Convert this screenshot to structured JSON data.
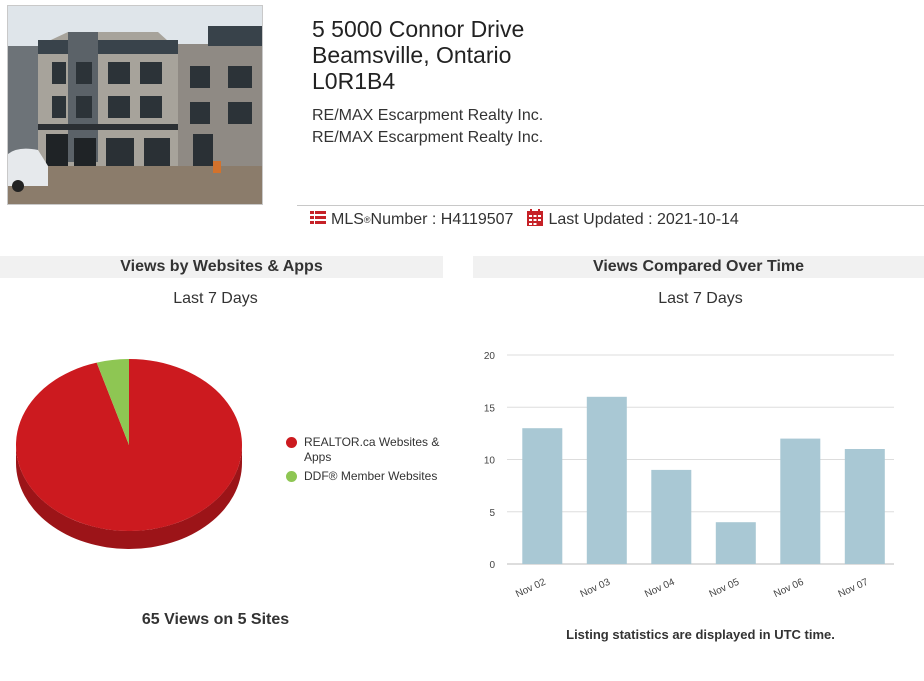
{
  "listing": {
    "address_line1": "5 5000 Connor Drive",
    "address_line2": "Beamsville, Ontario",
    "postal_code": "L0R1B4",
    "brokerages": [
      "RE/MAX Escarpment Realty Inc.",
      "RE/MAX Escarpment Realty Inc."
    ],
    "mls_label": "MLS",
    "mls_reg": "®",
    "mls_suffix": " Number : H4119507",
    "last_updated": "Last Updated : 2021-10-14"
  },
  "colors": {
    "realtor_red": "#cc1a1f",
    "member_green": "#8ec653",
    "bar_blue": "#a9c8d4",
    "icon_red": "#c62127"
  },
  "left_panel": {
    "title": "Views by Websites & Apps",
    "subtitle": "Last 7 Days",
    "total": "65 Views on 5 Sites",
    "legend": [
      {
        "label": "REALTOR.ca Websites & Apps",
        "color": "#cc1a1f"
      },
      {
        "label": "DDF® Member Websites",
        "color": "#8ec653"
      }
    ]
  },
  "right_panel": {
    "title": "Views Compared Over Time",
    "subtitle": "Last 7 Days",
    "footnote": "Listing statistics are displayed in UTC time."
  },
  "chart_data": [
    {
      "type": "pie",
      "title": "Views by Websites & Apps",
      "categories": [
        "REALTOR.ca Websites & Apps",
        "DDF® Member Websites"
      ],
      "values": [
        62,
        3
      ]
    },
    {
      "type": "bar",
      "title": "Views Compared Over Time",
      "categories": [
        "Nov 02",
        "Nov 03",
        "Nov 04",
        "Nov 05",
        "Nov 06",
        "Nov 07"
      ],
      "values": [
        13,
        16,
        9,
        4,
        12,
        11
      ],
      "ylim": [
        0,
        20
      ],
      "yticks": [
        0,
        5,
        10,
        15,
        20
      ],
      "grid": true
    }
  ]
}
